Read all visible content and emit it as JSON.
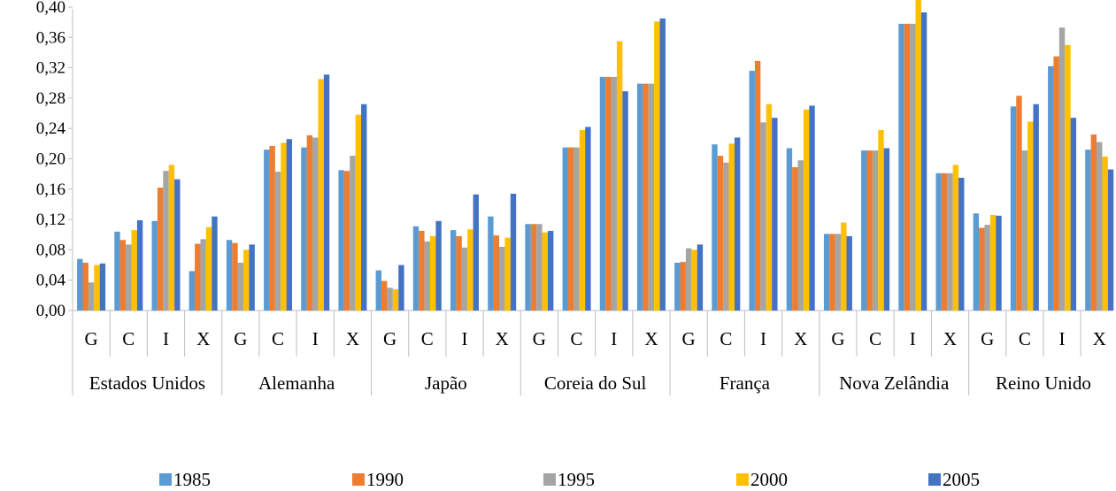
{
  "chart_data": {
    "type": "bar",
    "title": "",
    "xlabel": "",
    "ylabel": "",
    "ylim": [
      0,
      0.4
    ],
    "yticks": [
      "0,00",
      "0,04",
      "0,08",
      "0,12",
      "0,16",
      "0,20",
      "0,24",
      "0,28",
      "0,32",
      "0,36",
      "0,40"
    ],
    "grid": false,
    "legend_position": "bottom",
    "groups": [
      {
        "name": "Estados Unidos",
        "subcategories": [
          "G",
          "C",
          "I",
          "X"
        ]
      },
      {
        "name": "Alemanha",
        "subcategories": [
          "G",
          "C",
          "I",
          "X"
        ]
      },
      {
        "name": "Japão",
        "subcategories": [
          "G",
          "C",
          "I",
          "X"
        ]
      },
      {
        "name": "Coreia do Sul",
        "subcategories": [
          "G",
          "C",
          "I",
          "X"
        ]
      },
      {
        "name": "França",
        "subcategories": [
          "G",
          "C",
          "I",
          "X"
        ]
      },
      {
        "name": "Nova Zelândia",
        "subcategories": [
          "G",
          "C",
          "I",
          "X"
        ]
      },
      {
        "name": "Reino Unido",
        "subcategories": [
          "G",
          "C",
          "I",
          "X"
        ]
      }
    ],
    "series": [
      {
        "name": "1985",
        "color": "#5b9bd5",
        "values": [
          0.068,
          0.104,
          0.118,
          0.052,
          0.093,
          0.212,
          0.215,
          0.185,
          0.053,
          0.111,
          0.106,
          0.124,
          0.114,
          0.215,
          0.308,
          0.299,
          0.063,
          0.219,
          0.316,
          0.214,
          0.101,
          0.211,
          0.378,
          0.181,
          0.128,
          0.269,
          0.322,
          0.212
        ]
      },
      {
        "name": "1990",
        "color": "#ed7d31",
        "values": [
          0.063,
          0.093,
          0.162,
          0.088,
          0.089,
          0.217,
          0.231,
          0.184,
          0.039,
          0.105,
          0.098,
          0.099,
          0.114,
          0.215,
          0.308,
          0.299,
          0.064,
          0.204,
          0.329,
          0.189,
          0.101,
          0.211,
          0.378,
          0.181,
          0.109,
          0.283,
          0.335,
          0.232
        ]
      },
      {
        "name": "1995",
        "color": "#a5a5a5",
        "values": [
          0.037,
          0.087,
          0.184,
          0.094,
          0.063,
          0.183,
          0.228,
          0.204,
          0.03,
          0.091,
          0.083,
          0.084,
          0.114,
          0.215,
          0.308,
          0.299,
          0.082,
          0.195,
          0.248,
          0.198,
          0.101,
          0.211,
          0.378,
          0.181,
          0.113,
          0.211,
          0.373,
          0.222
        ]
      },
      {
        "name": "2000",
        "color": "#ffc000",
        "values": [
          0.06,
          0.106,
          0.192,
          0.11,
          0.08,
          0.221,
          0.305,
          0.258,
          0.028,
          0.098,
          0.107,
          0.096,
          0.103,
          0.238,
          0.355,
          0.381,
          0.08,
          0.22,
          0.272,
          0.265,
          0.116,
          0.238,
          0.412,
          0.192,
          0.126,
          0.249,
          0.35,
          0.203
        ]
      },
      {
        "name": "2005",
        "color": "#4472c4",
        "values": [
          0.062,
          0.119,
          0.173,
          0.124,
          0.087,
          0.226,
          0.311,
          0.272,
          0.06,
          0.118,
          0.153,
          0.154,
          0.105,
          0.242,
          0.289,
          0.385,
          0.087,
          0.228,
          0.254,
          0.27,
          0.098,
          0.214,
          0.393,
          0.175,
          0.125,
          0.272,
          0.254,
          0.186
        ]
      }
    ]
  }
}
